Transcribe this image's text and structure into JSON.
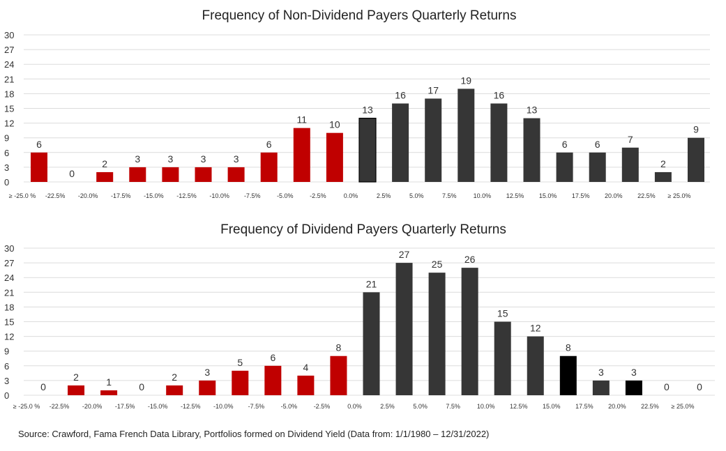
{
  "colors": {
    "negative": "#c00000",
    "positive": "#363636",
    "outlined": "#363636",
    "black": "#000000",
    "grid": "#dcdcdc"
  },
  "source": "Source: Crawford, Fama French Data Library, Portfolios formed on Dividend Yield (Data from: 1/1/1980 – 12/31/2022)",
  "chart_data": [
    {
      "type": "bar",
      "title": "Frequency of Non-Dividend Payers Quarterly Returns",
      "xlabel": "",
      "ylabel": "",
      "ylim": [
        0,
        30
      ],
      "yticks": [
        "0",
        "3",
        "6",
        "9",
        "12",
        "15",
        "18",
        "21",
        "24",
        "27",
        "30"
      ],
      "xticks": [
        "≥ -25.0 %",
        "-22.5%",
        "-20.0%",
        "-17.5%",
        "-15.0%",
        "-12.5%",
        "-10.0%",
        "-7.5%",
        "-5.0%",
        "-2.5%",
        "0.0%",
        "2.5%",
        "5.0%",
        "7.5%",
        "10.0%",
        "12.5%",
        "15.0%",
        "17.5%",
        "20.0%",
        "22.5%",
        "≥ 25.0%"
      ],
      "values": [
        6,
        0,
        2,
        3,
        3,
        3,
        3,
        6,
        11,
        10,
        13,
        16,
        17,
        19,
        16,
        13,
        6,
        6,
        7,
        2,
        9
      ],
      "bar_colors": [
        "negative",
        "negative",
        "negative",
        "negative",
        "negative",
        "negative",
        "negative",
        "negative",
        "negative",
        "negative",
        "outlined",
        "positive",
        "positive",
        "positive",
        "positive",
        "positive",
        "positive",
        "positive",
        "positive",
        "positive",
        "positive"
      ],
      "grid": true
    },
    {
      "type": "bar",
      "title": "Frequency of Dividend Payers Quarterly Returns",
      "xlabel": "",
      "ylabel": "",
      "ylim": [
        0,
        30
      ],
      "yticks": [
        "0",
        "3",
        "6",
        "9",
        "12",
        "15",
        "18",
        "21",
        "24",
        "27",
        "30"
      ],
      "xticks": [
        "≥ -25.0 %",
        "-22.5%",
        "-20.0%",
        "-17.5%",
        "-15.0%",
        "-12.5%",
        "-10.0%",
        "-7.5%",
        "-5.0%",
        "-2.5%",
        "0.0%",
        "2.5%",
        "5.0%",
        "7.5%",
        "10.0%",
        "12.5%",
        "15.0%",
        "17.5%",
        "20.0%",
        "22.5%",
        "≥ 25.0%"
      ],
      "values": [
        0,
        2,
        1,
        0,
        2,
        3,
        5,
        6,
        4,
        8,
        21,
        27,
        25,
        26,
        15,
        12,
        8,
        3,
        3,
        0,
        0
      ],
      "bar_colors": [
        "negative",
        "negative",
        "negative",
        "negative",
        "negative",
        "negative",
        "negative",
        "negative",
        "negative",
        "negative",
        "positive",
        "positive",
        "positive",
        "positive",
        "positive",
        "positive",
        "black",
        "positive",
        "black",
        "positive",
        "positive"
      ],
      "grid": true
    }
  ]
}
